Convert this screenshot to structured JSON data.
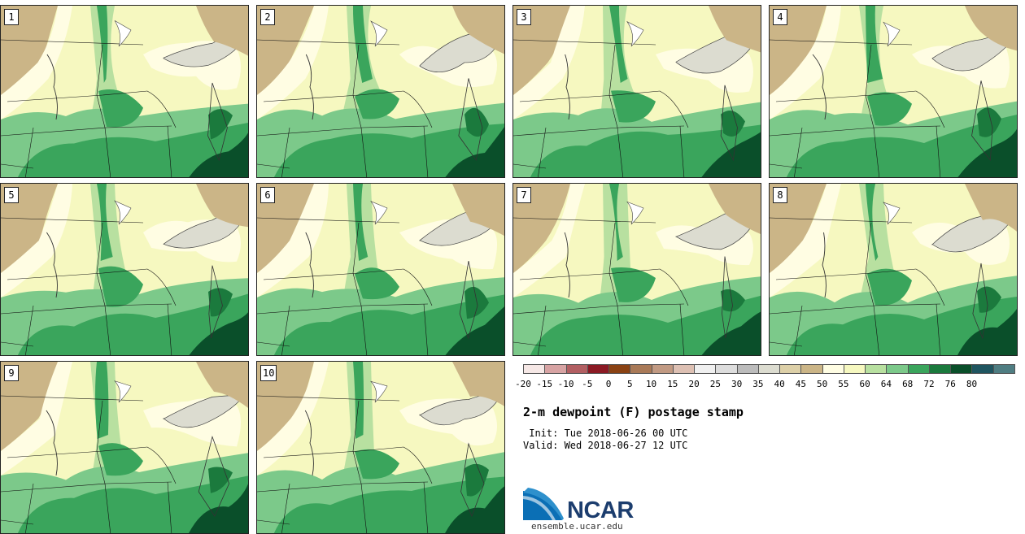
{
  "panels": [
    {
      "label": "1"
    },
    {
      "label": "2"
    },
    {
      "label": "3"
    },
    {
      "label": "4"
    },
    {
      "label": "5"
    },
    {
      "label": "6"
    },
    {
      "label": "7"
    },
    {
      "label": "8"
    },
    {
      "label": "9"
    },
    {
      "label": "10"
    }
  ],
  "colorbar": {
    "ticks": [
      "-20",
      "-15",
      "-10",
      "-5",
      "0",
      "5",
      "10",
      "15",
      "20",
      "25",
      "30",
      "35",
      "40",
      "45",
      "50",
      "55",
      "60",
      "64",
      "68",
      "72",
      "76",
      "80"
    ],
    "colors": [
      "#f6e8e6",
      "#d7a3a3",
      "#b25f62",
      "#8b1a24",
      "#8a4213",
      "#a97a58",
      "#c19a83",
      "#ddc0b3",
      "#f0f0f0",
      "#dddddd",
      "#bcbcbc",
      "#dcdcd0",
      "#ddd0a8",
      "#cbb587",
      "#fffde3",
      "#f6f8c0",
      "#b8e0a0",
      "#7cc98a",
      "#3aa55c",
      "#1b7a3d",
      "#0a4f2a",
      "#1f5560",
      "#4f7d82"
    ]
  },
  "title": "2-m dewpoint (F) postage stamp",
  "init": " Init: Tue 2018-06-26 00 UTC",
  "valid": "Valid: Wed 2018-06-27 12 UTC",
  "logo": {
    "name": "NCAR",
    "url": "ensemble.ucar.edu",
    "color": "#0b6fb5"
  }
}
